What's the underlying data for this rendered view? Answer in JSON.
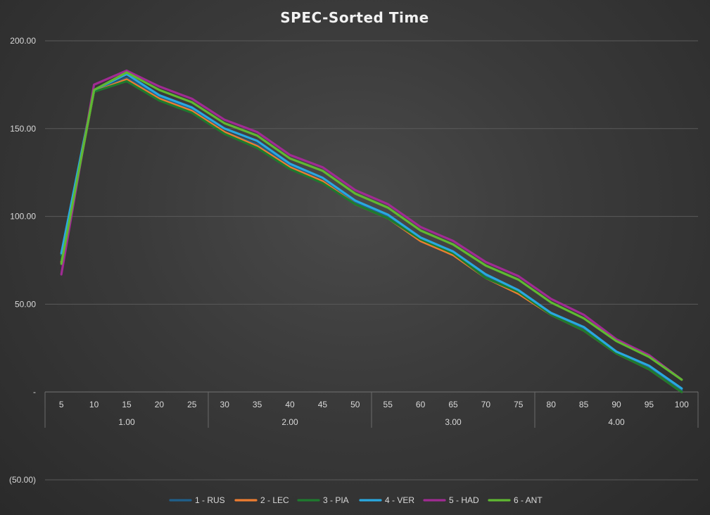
{
  "chart_data": {
    "type": "line",
    "title": "SPEC-Sorted Time",
    "xlabel": "",
    "ylabel": "",
    "ylim": [
      -50,
      200
    ],
    "y_ticks": [
      200,
      150,
      100,
      50,
      0,
      -50
    ],
    "y_tick_labels": [
      "200.00",
      "150.00",
      "100.00",
      "50.00",
      "-",
      "(50.00)"
    ],
    "x": [
      5,
      10,
      15,
      20,
      25,
      30,
      35,
      40,
      45,
      50,
      55,
      60,
      65,
      70,
      75,
      80,
      85,
      90,
      95,
      100
    ],
    "x_tick_labels": [
      "5",
      "10",
      "15",
      "20",
      "25",
      "30",
      "35",
      "40",
      "45",
      "50",
      "55",
      "60",
      "65",
      "70",
      "75",
      "80",
      "85",
      "90",
      "95",
      "100"
    ],
    "x_groups": [
      {
        "label": "1.00",
        "start_index": 0,
        "end_index": 4
      },
      {
        "label": "2.00",
        "start_index": 5,
        "end_index": 9
      },
      {
        "label": "3.00",
        "start_index": 10,
        "end_index": 14
      },
      {
        "label": "4.00",
        "start_index": 15,
        "end_index": 19
      }
    ],
    "grid": true,
    "legend_position": "bottom",
    "series": [
      {
        "name": "1 - RUS",
        "color": "#1f5f8b",
        "values": [
          78,
          171,
          179,
          168,
          161,
          148,
          141,
          129,
          120,
          108,
          100,
          87,
          79,
          66,
          57,
          45,
          36,
          23,
          14,
          1
        ]
      },
      {
        "name": "2 - LEC",
        "color": "#ed7d31",
        "values": [
          74,
          171,
          178,
          167,
          160,
          148,
          140,
          128,
          120,
          107,
          99,
          86,
          78,
          65,
          56,
          44,
          35,
          22,
          13,
          0
        ]
      },
      {
        "name": "3 - PIA",
        "color": "#1e7a2e",
        "values": [
          75,
          171,
          177,
          166,
          159,
          147,
          139,
          127,
          119,
          107,
          99,
          87,
          79,
          65,
          57,
          44,
          35,
          22,
          13,
          0
        ]
      },
      {
        "name": "4 - VER",
        "color": "#29a8e0",
        "values": [
          79,
          172,
          181,
          169,
          162,
          150,
          143,
          130,
          122,
          109,
          101,
          88,
          80,
          67,
          58,
          45,
          37,
          23,
          15,
          2
        ]
      },
      {
        "name": "5 - HAD",
        "color": "#a02b93",
        "values": [
          67,
          175,
          183,
          174,
          167,
          155,
          148,
          135,
          128,
          115,
          107,
          94,
          86,
          74,
          66,
          53,
          44,
          30,
          21,
          7
        ]
      },
      {
        "name": "6 - ANT",
        "color": "#5fb832",
        "values": [
          73,
          172,
          182,
          172,
          165,
          153,
          146,
          133,
          126,
          113,
          105,
          92,
          84,
          72,
          64,
          51,
          42,
          29,
          20,
          7
        ]
      }
    ]
  }
}
